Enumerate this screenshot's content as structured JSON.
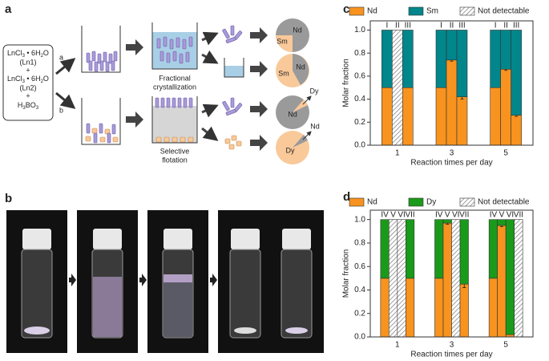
{
  "panel_labels": {
    "a": "a",
    "b": "b",
    "c": "c",
    "d": "d"
  },
  "scheme": {
    "reagent_1": [
      "LnCl",
      "3",
      " • 6H",
      "2",
      "O"
    ],
    "ln1": "(Ln1)",
    "plus_1": "+",
    "reagent_2": [
      "LnCl",
      "3",
      " • 6H",
      "2",
      "O"
    ],
    "ln2": "(Ln2)",
    "plus_2": "+",
    "reagent_3": [
      "H",
      "3",
      "BO",
      "3"
    ],
    "route_a": "a",
    "route_b": "b",
    "step_1": [
      "Fractional",
      "crystallization"
    ],
    "step_2": [
      "Selective",
      "flotation"
    ],
    "pies": [
      [
        "Nd",
        "Sm"
      ],
      [
        "Sm",
        "Nd"
      ],
      [
        "Nd",
        "Dy"
      ],
      [
        "Dy",
        "Nd"
      ]
    ]
  },
  "chart_data": [
    {
      "type": "bar",
      "stacked": true,
      "x_label": "Reaction times per day",
      "y_label": "Molar fraction",
      "groups": [
        "1",
        "3",
        "5"
      ],
      "categories": [
        "I",
        "II",
        "III",
        "I",
        "II",
        "III",
        "I",
        "II",
        "III"
      ],
      "series": [
        {
          "name": "Nd",
          "color": "#f7931e",
          "values": [
            0.5,
            null,
            0.5,
            0.5,
            0.74,
            0.42,
            0.5,
            0.66,
            0.26
          ],
          "errors": [
            null,
            null,
            null,
            null,
            0.01,
            0.02,
            null,
            0.01,
            0.01
          ]
        },
        {
          "name": "Sm",
          "color": "#00868b",
          "values": [
            0.5,
            null,
            0.5,
            0.5,
            0.26,
            0.58,
            0.5,
            0.34,
            0.74
          ]
        },
        {
          "name": "Not detectable",
          "color": "#888888",
          "hatch": true,
          "values": [
            null,
            1,
            null,
            null,
            null,
            null,
            null,
            null,
            null
          ]
        }
      ],
      "ylim": [
        0,
        1.08
      ],
      "yticks": [
        {
          "value": 0,
          "label": "0.0"
        },
        0.2,
        0.4,
        0.6,
        0.8,
        {
          "value": 1,
          "label": "1.0"
        }
      ]
    },
    {
      "type": "bar",
      "stacked": true,
      "x_label": "Reaction times per day",
      "y_label": "Molar fraction",
      "groups": [
        "1",
        "3",
        "5"
      ],
      "categories": [
        "IV",
        "V",
        "VI",
        "VII",
        "IV",
        "V",
        "VI",
        "VII",
        "IV",
        "V",
        "VI",
        "VII"
      ],
      "series": [
        {
          "name": "Nd",
          "color": "#f7931e",
          "values": [
            0.5,
            null,
            null,
            0.5,
            0.5,
            0.97,
            null,
            0.45,
            0.5,
            0.95,
            0.02,
            null
          ],
          "errors": [
            null,
            null,
            null,
            null,
            null,
            0.01,
            null,
            0.03,
            null,
            0.01,
            null,
            null
          ]
        },
        {
          "name": "Dy",
          "color": "#1a9a1a",
          "values": [
            0.5,
            null,
            null,
            0.5,
            0.5,
            0.03,
            null,
            0.55,
            0.5,
            0.05,
            0.98,
            null
          ]
        },
        {
          "name": "Not detectable",
          "color": "#888888",
          "hatch": true,
          "values": [
            null,
            1,
            1,
            null,
            null,
            null,
            1,
            null,
            null,
            null,
            null,
            1
          ]
        }
      ],
      "ylim": [
        0,
        1.08
      ],
      "yticks": [
        {
          "value": 0,
          "label": "0.0"
        },
        0.2,
        0.4,
        0.6,
        0.8,
        {
          "value": 1,
          "label": "1.0"
        }
      ]
    }
  ]
}
